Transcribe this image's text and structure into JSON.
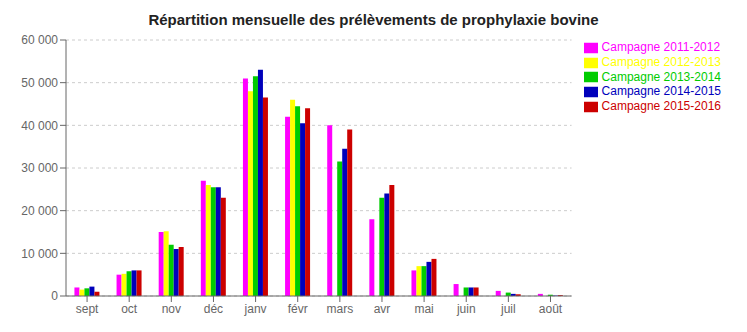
{
  "chart_data": {
    "type": "bar",
    "title": "Répartition mensuelle des prélèvements de prophylaxie bovine",
    "categories": [
      "sept",
      "oct",
      "nov",
      "déc",
      "janv",
      "févr",
      "mars",
      "avr",
      "mai",
      "juin",
      "juil",
      "août"
    ],
    "series": [
      {
        "name": "Campagne 2011-2012",
        "color": "#FF00FF",
        "values": [
          2000,
          5000,
          15000,
          27000,
          51000,
          42000,
          40000,
          18000,
          6000,
          2800,
          1200,
          500
        ]
      },
      {
        "name": "Campagne 2012-2013",
        "color": "#FFFF00",
        "values": [
          1500,
          5200,
          15200,
          26000,
          48000,
          46000,
          0,
          0,
          7000,
          0,
          0,
          0
        ]
      },
      {
        "name": "Campagne 2013-2014",
        "color": "#00CC00",
        "values": [
          1800,
          5800,
          12000,
          25500,
          51500,
          44500,
          31500,
          23000,
          7000,
          2000,
          800,
          300
        ]
      },
      {
        "name": "Campagne 2014-2015",
        "color": "#0000BB",
        "values": [
          2200,
          6000,
          11000,
          25500,
          53000,
          40500,
          34500,
          24000,
          8000,
          2000,
          500,
          100
        ]
      },
      {
        "name": "Campagne 2015-2016",
        "color": "#CC0000",
        "values": [
          1000,
          6000,
          11500,
          23000,
          46500,
          44000,
          39000,
          26000,
          8700,
          2000,
          400,
          200
        ]
      }
    ],
    "ylim": [
      0,
      60000
    ],
    "yticks": [
      0,
      {
        "value": 10000,
        "label": "10 000"
      },
      {
        "value": 20000,
        "label": "20 000"
      },
      {
        "value": 30000,
        "label": "30 000"
      },
      {
        "value": 40000,
        "label": "40 000"
      },
      {
        "value": 50000,
        "label": "50 000"
      },
      {
        "value": 60000,
        "label": "60 000"
      }
    ],
    "grid": true,
    "legend": "upper right"
  }
}
